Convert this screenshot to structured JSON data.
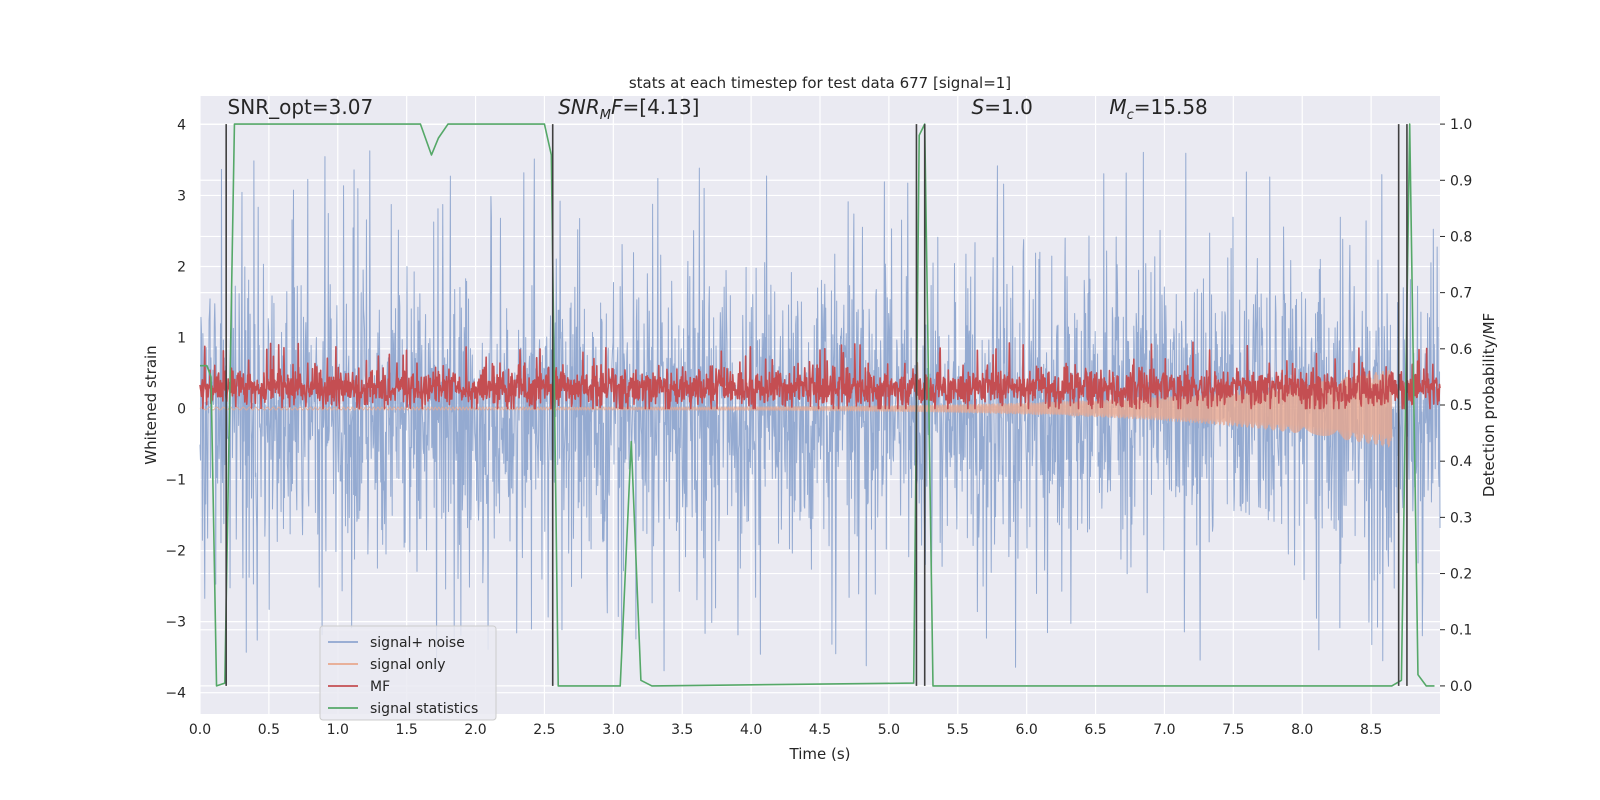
{
  "chart_data": {
    "type": "line",
    "title": "stats at each timestep for test data 677 [signal=1]",
    "xlabel": "Time (s)",
    "ylabel_left": "Whitened strain",
    "ylabel_right": "Detection probability/MF",
    "xlim": [
      0,
      9
    ],
    "ylim_left": [
      -4.3,
      4.4
    ],
    "ylim_right": [
      -0.05,
      1.05
    ],
    "x_ticks": [
      0.0,
      0.5,
      1.0,
      1.5,
      2.0,
      2.5,
      3.0,
      3.5,
      4.0,
      4.5,
      5.0,
      5.5,
      6.0,
      6.5,
      7.0,
      7.5,
      8.0,
      8.5
    ],
    "x_tick_labels": [
      "0.0",
      "0.5",
      "1.0",
      "1.5",
      "2.0",
      "2.5",
      "3.0",
      "3.5",
      "4.0",
      "4.5",
      "5.0",
      "5.5",
      "6.0",
      "6.5",
      "7.0",
      "7.5",
      "8.0",
      "8.5"
    ],
    "y_left_ticks": [
      -4,
      -3,
      -2,
      -1,
      0,
      1,
      2,
      3,
      4
    ],
    "y_left_tick_labels": [
      "−4",
      "−3",
      "−2",
      "−1",
      "0",
      "1",
      "2",
      "3",
      "4"
    ],
    "y_right_ticks": [
      0.0,
      0.1,
      0.2,
      0.3,
      0.4,
      0.5,
      0.6,
      0.7,
      0.8,
      0.9,
      1.0
    ],
    "y_right_tick_labels": [
      "0.0",
      "0.1",
      "0.2",
      "0.3",
      "0.4",
      "0.5",
      "0.6",
      "0.7",
      "0.8",
      "0.9",
      "1.0"
    ],
    "grid": true,
    "legend_position": "lower-left",
    "annotations": [
      {
        "text": "SNR_opt=3.07",
        "x": 0.2,
        "y": 4.15
      },
      {
        "text": "SNR_MF=[4.13]",
        "x": 2.6,
        "y": 4.15
      },
      {
        "text": "S=1.0",
        "x": 5.6,
        "y": 4.15
      },
      {
        "text": "M_c=15.58",
        "x": 6.6,
        "y": 4.15
      }
    ],
    "series": [
      {
        "name": "signal+ noise",
        "axis": "left",
        "color": "#8fa6cf",
        "style": "dense-noise",
        "x_range": [
          0,
          9
        ],
        "center": -0.05,
        "typical_amplitude": 1.5,
        "peak_amplitude": 3.7
      },
      {
        "name": "signal only",
        "axis": "left",
        "color": "#e8a88e",
        "style": "chirp",
        "x_range": [
          0,
          8.65
        ],
        "start_amplitude": 0.02,
        "end_amplitude": 0.55
      },
      {
        "name": "MF",
        "axis": "left",
        "color": "#c44e52",
        "style": "dense-noise-positive",
        "x_range": [
          0,
          9
        ],
        "min": 0.0,
        "typical_max": 0.55,
        "peak": 0.95
      },
      {
        "name": "signal statistics",
        "axis": "right",
        "color": "#55a868",
        "points": [
          [
            0.0,
            0.57
          ],
          [
            0.05,
            0.57
          ],
          [
            0.08,
            0.55
          ],
          [
            0.12,
            0.0
          ],
          [
            0.18,
            0.005
          ],
          [
            0.25,
            1.0
          ],
          [
            1.6,
            1.0
          ],
          [
            1.68,
            0.945
          ],
          [
            1.73,
            0.975
          ],
          [
            1.8,
            1.0
          ],
          [
            2.5,
            1.0
          ],
          [
            2.55,
            0.945
          ],
          [
            2.6,
            0.0
          ],
          [
            2.75,
            0.0
          ],
          [
            3.05,
            0.0
          ],
          [
            3.13,
            0.435
          ],
          [
            3.2,
            0.01
          ],
          [
            3.28,
            0.0
          ],
          [
            5.18,
            0.005
          ],
          [
            5.22,
            0.98
          ],
          [
            5.26,
            1.0
          ],
          [
            5.32,
            0.0
          ],
          [
            8.65,
            0.0
          ],
          [
            8.72,
            0.01
          ],
          [
            8.78,
            1.0
          ],
          [
            8.84,
            0.02
          ],
          [
            8.9,
            0.0
          ],
          [
            8.96,
            0.0
          ]
        ]
      }
    ],
    "vertical_lines": [
      0.19,
      2.56,
      5.2,
      5.26,
      8.7,
      8.76
    ],
    "vertical_line_color": "#404040"
  }
}
